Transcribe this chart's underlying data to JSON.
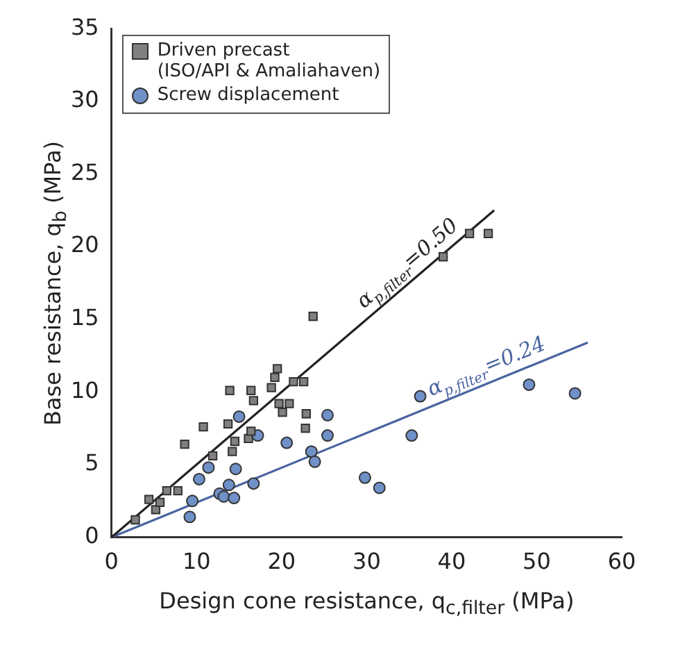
{
  "chart_data": {
    "type": "scatter",
    "xlabel": "Design cone resistance, q$_{c,filter}$ (MPa)",
    "ylabel": "Base resistance, q$_{b}$ (MPa)",
    "xlim": [
      0,
      60
    ],
    "xticks": [
      0,
      10,
      20,
      30,
      40,
      50,
      60
    ],
    "ylim": [
      0,
      35
    ],
    "yticks": [
      0,
      5,
      10,
      15,
      20,
      25,
      30,
      35
    ],
    "grid": false,
    "legend": "top left",
    "series": [
      {
        "name": "Driven precast\n(ISO/API & Amaliahaven)",
        "color": "#808080",
        "marker": "square",
        "x": [
          2.8,
          4.4,
          5.2,
          5.7,
          6.5,
          7.8,
          8.6,
          10.8,
          11.9,
          13.9,
          13.7,
          14.2,
          14.5,
          16.4,
          16.7,
          16.1,
          16.4,
          18.8,
          19.5,
          19.2,
          19.7,
          20.1,
          20.9,
          21.4,
          22.6,
          22.9,
          22.8,
          23.7,
          39.0,
          42.1,
          44.3
        ],
        "values": [
          1.2,
          2.6,
          1.9,
          2.4,
          3.2,
          3.2,
          6.4,
          7.6,
          5.6,
          10.1,
          7.8,
          5.9,
          6.6,
          10.1,
          9.4,
          6.8,
          7.3,
          10.3,
          11.6,
          11.0,
          9.2,
          8.6,
          9.2,
          10.7,
          10.7,
          8.5,
          7.5,
          15.2,
          19.3,
          20.9,
          20.9
        ]
      },
      {
        "name": "Screw displacement",
        "color": "#7090c8",
        "marker": "circle",
        "x": [
          9.2,
          9.5,
          10.3,
          11.4,
          12.7,
          13.2,
          13.8,
          14.4,
          14.6,
          15.0,
          16.7,
          17.2,
          20.6,
          23.5,
          23.9,
          25.4,
          25.4,
          29.8,
          31.5,
          35.3,
          36.3,
          49.1,
          54.5
        ],
        "values": [
          1.4,
          2.5,
          4.0,
          4.8,
          3.0,
          2.8,
          3.6,
          2.7,
          4.7,
          8.3,
          3.7,
          7.0,
          6.5,
          5.9,
          5.2,
          8.4,
          7.0,
          4.1,
          3.4,
          7.0,
          9.7,
          10.5,
          9.9
        ]
      },
      {
        "type": "line",
        "color": "#222222",
        "marker": "none",
        "line_style": "solid",
        "x": [
          0,
          45
        ],
        "values": [
          0,
          22.5
        ]
      },
      {
        "type": "line",
        "color": "#4a64a0",
        "marker": "none",
        "line_style": "solid",
        "x": [
          0,
          56
        ],
        "values": [
          0,
          13.4
        ]
      }
    ],
    "annotations": [
      "α$_{p,filter}$=0.50",
      "α$_{p,filter}$=0.24"
    ]
  }
}
